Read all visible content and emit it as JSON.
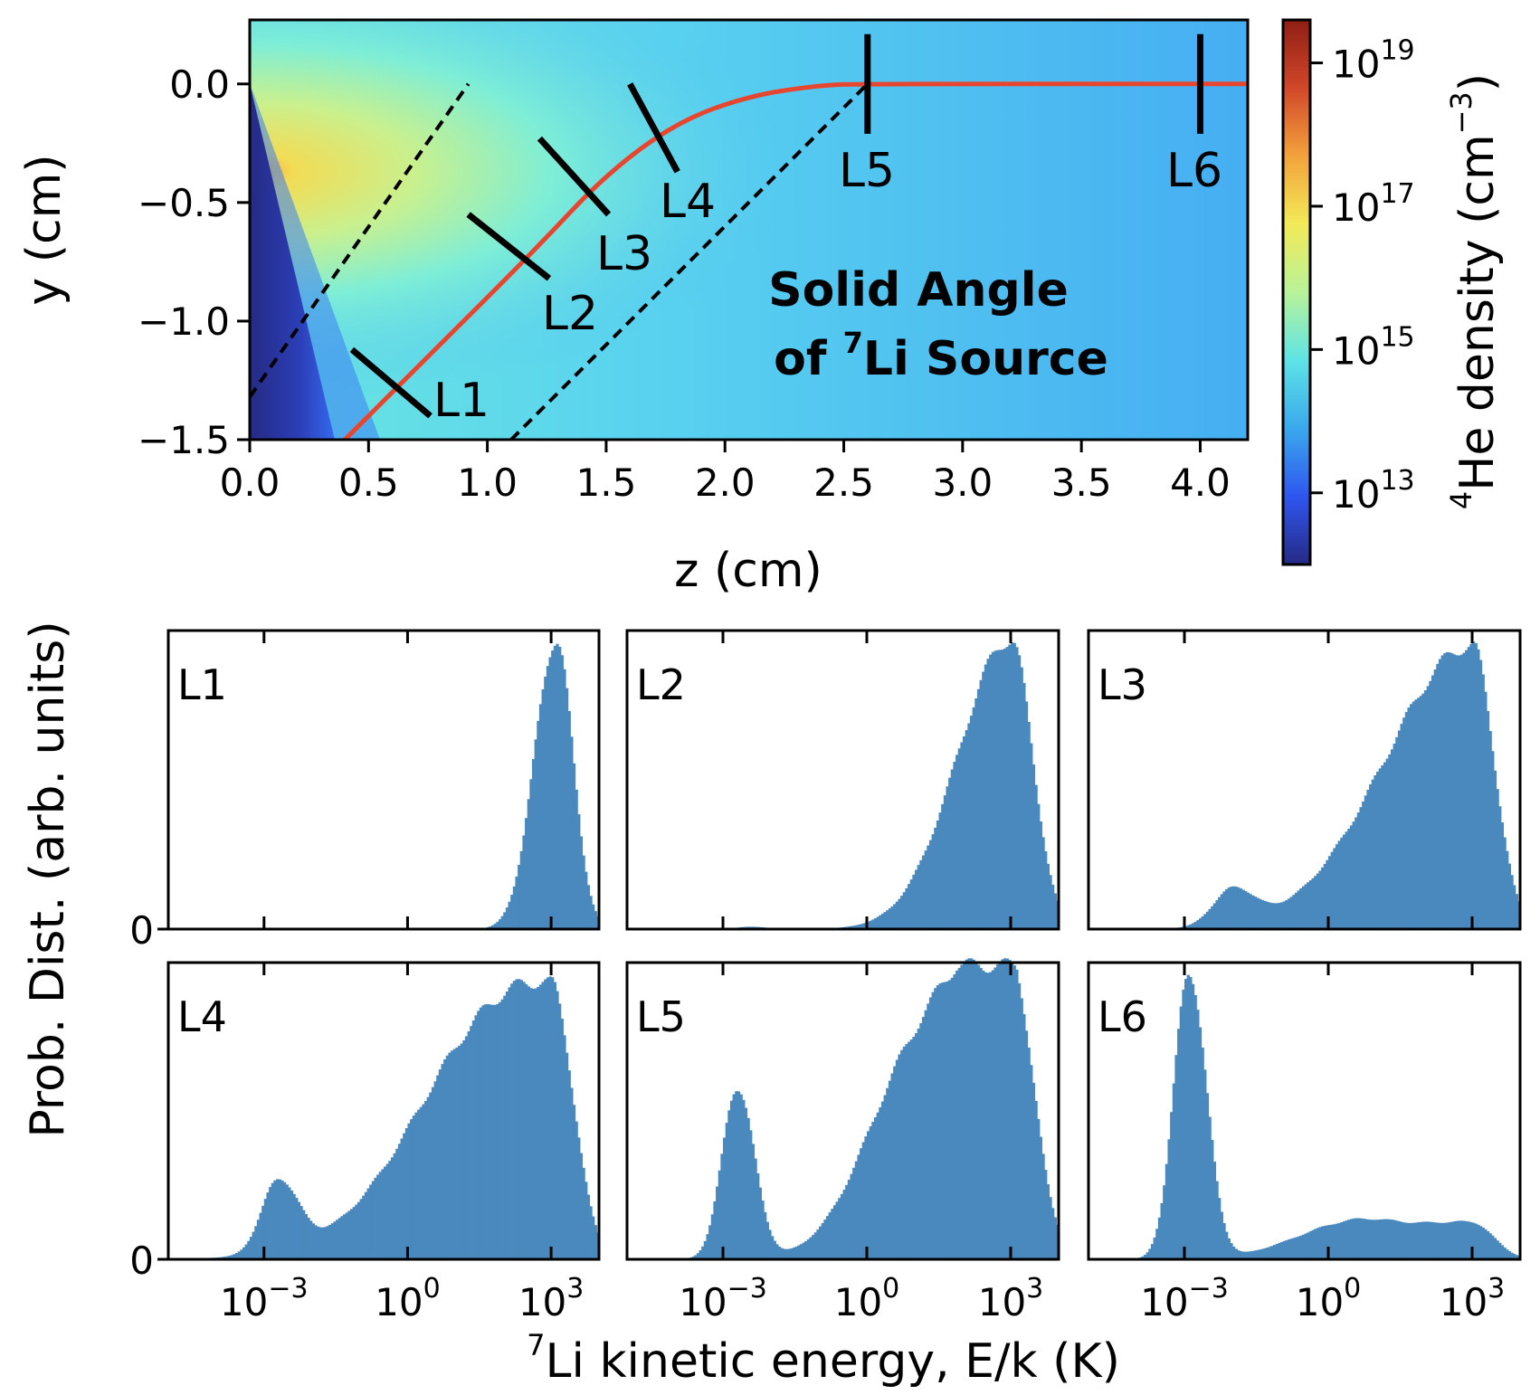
{
  "chart_data": [
    {
      "type": "heatmap",
      "title": "",
      "xlabel": "z (cm)",
      "ylabel": "y (cm)",
      "xlim": [
        0.0,
        4.2
      ],
      "ylim": [
        -1.5,
        0.27
      ],
      "xticks": [
        "0.0",
        "0.5",
        "1.0",
        "1.5",
        "2.0",
        "2.5",
        "3.0",
        "3.5",
        "4.0"
      ],
      "xtick_values": [
        0.0,
        0.5,
        1.0,
        1.5,
        2.0,
        2.5,
        3.0,
        3.5,
        4.0
      ],
      "yticks": [
        "0.0",
        "−0.5",
        "−1.0",
        "−1.5"
      ],
      "ytick_values": [
        0.0,
        -0.5,
        -1.0,
        -1.5
      ],
      "annotation": [
        "Solid Angle",
        "of ",
        "7",
        "Li Source"
      ],
      "colorbar": {
        "label_sup": "4",
        "label_main": "He density (cm",
        "label_exp": "−3",
        "label_close": ")",
        "ticks": [
          {
            "base": "10",
            "exp": "19",
            "value": 1e+19
          },
          {
            "base": "10",
            "exp": "17",
            "value": 1e+17
          },
          {
            "base": "10",
            "exp": "15",
            "value": 1000000000000000.0
          },
          {
            "base": "10",
            "exp": "13",
            "value": 10000000000000.0
          }
        ],
        "log_range": [
          12.0,
          19.6
        ],
        "colors": [
          "#262a84",
          "#2f56f0",
          "#3aa8ec",
          "#5ee3e6",
          "#b9f299",
          "#f2ea58",
          "#f3a23c",
          "#d1472a",
          "#8f1e14"
        ]
      },
      "trajectory": {
        "color": "#e8452f",
        "points": [
          [
            0.4,
            -1.5
          ],
          [
            0.8,
            -1.1
          ],
          [
            1.2,
            -0.7
          ],
          [
            1.5,
            -0.38
          ],
          [
            1.8,
            -0.16
          ],
          [
            2.1,
            -0.05
          ],
          [
            2.4,
            -0.005
          ],
          [
            2.6,
            0.0
          ],
          [
            4.2,
            0.0
          ]
        ]
      },
      "solid_angle_lines": [
        {
          "from": [
            0.0,
            -1.32
          ],
          "to": [
            0.92,
            0.0
          ]
        },
        {
          "from": [
            1.1,
            -1.5
          ],
          "to": [
            2.6,
            0.0
          ]
        }
      ],
      "markers": [
        {
          "label": "L1",
          "from": [
            0.43,
            -1.12
          ],
          "to": [
            0.76,
            -1.4
          ]
        },
        {
          "label": "L2",
          "from": [
            0.92,
            -0.55
          ],
          "to": [
            1.26,
            -0.82
          ]
        },
        {
          "label": "L3",
          "from": [
            1.22,
            -0.23
          ],
          "to": [
            1.51,
            -0.55
          ]
        },
        {
          "label": "L4",
          "from": [
            1.6,
            0.0
          ],
          "to": [
            1.8,
            -0.37
          ]
        },
        {
          "label": "L5",
          "from": [
            2.6,
            0.21
          ],
          "to": [
            2.6,
            -0.21
          ]
        },
        {
          "label": "L6",
          "from": [
            4.0,
            0.21
          ],
          "to": [
            4.0,
            -0.21
          ]
        }
      ]
    },
    {
      "type": "histogram_grid",
      "xlabel_sup": "7",
      "xlabel": "Li kinetic energy, E/k (K)",
      "ylabel": "Prob. Dist. (arb. units)",
      "xscale": "log",
      "xlim_log10": [
        -5.0,
        4.0
      ],
      "xticks": [
        {
          "base": "10",
          "exp": "−3",
          "value": 0.001
        },
        {
          "base": "10",
          "exp": "0",
          "value": 1
        },
        {
          "base": "10",
          "exp": "3",
          "value": 1000
        }
      ],
      "ytick_label": "0",
      "bar_color": "#4a89bd",
      "panels": [
        {
          "label": "L1",
          "peaks": [
            {
              "log10E": 3.1,
              "height": 0.97,
              "wl": 0.45,
              "wr": 0.35
            }
          ]
        },
        {
          "label": "L2",
          "peaks": [
            {
              "log10E": 3.0,
              "height": 0.97,
              "wl": 1.1,
              "wr": 0.45
            },
            {
              "log10E": -2.4,
              "height": 0.008,
              "wl": 0.3,
              "wr": 0.3
            }
          ]
        },
        {
          "label": "L3",
          "peaks": [
            {
              "log10E": 3.0,
              "height": 0.95,
              "wl": 1.8,
              "wr": 0.45
            },
            {
              "log10E": -2.0,
              "height": 0.12,
              "wl": 0.4,
              "wr": 0.45
            }
          ]
        },
        {
          "label": "L4",
          "peaks": [
            {
              "log10E": 3.0,
              "height": 0.9,
              "wl": 2.2,
              "wr": 0.45
            },
            {
              "log10E": -2.7,
              "height": 0.24,
              "wl": 0.35,
              "wr": 0.4
            },
            {
              "log10E": 1.0,
              "height": 0.12,
              "wl": 1.2,
              "wr": 1.2
            }
          ]
        },
        {
          "label": "L5",
          "peaks": [
            {
              "log10E": 3.0,
              "height": 0.92,
              "wl": 1.5,
              "wr": 0.45
            },
            {
              "log10E": -2.7,
              "height": 0.58,
              "wl": 0.32,
              "wr": 0.35
            },
            {
              "log10E": 0.8,
              "height": 0.4,
              "wl": 1.0,
              "wr": 1.4
            }
          ]
        },
        {
          "label": "L6",
          "peaks": [
            {
              "log10E": -2.9,
              "height": 0.97,
              "wl": 0.32,
              "wr": 0.35
            },
            {
              "log10E": 0.5,
              "height": 0.12,
              "wl": 1.2,
              "wr": 1.0
            },
            {
              "log10E": 3.0,
              "height": 0.12,
              "wl": 1.2,
              "wr": 0.45
            }
          ]
        }
      ]
    }
  ]
}
